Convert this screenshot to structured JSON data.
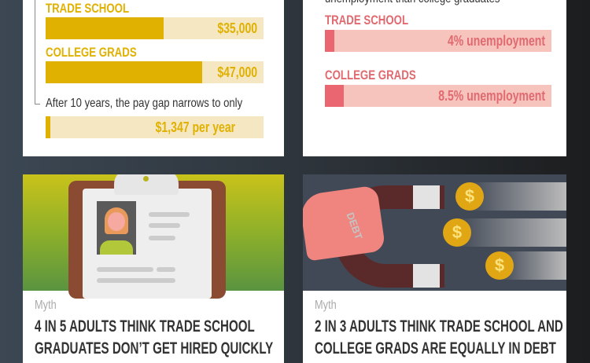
{
  "salary": {
    "trade_label": "TRADE SCHOOL",
    "trade_value": "$35,000",
    "trade_fill": 0.54,
    "college_label": "COLLEGE GRADS",
    "college_value": "$47,000",
    "college_fill": 0.72,
    "note": "After 10 years, the pay gap narrows to only",
    "gap_value": "$1,347 per year",
    "gap_fill": 0.02,
    "colors": {
      "fill": "#e0b100",
      "track": "#f5e7c2"
    }
  },
  "unemployment": {
    "intro": "unemployment than college graduates",
    "trade_label": "TRADE SCHOOL",
    "trade_value": "4% unemployment",
    "trade_fill": 0.04,
    "college_label": "COLLEGE GRADS",
    "college_value": "8.5% unemployment",
    "college_fill": 0.085,
    "colors": {
      "fill": "#ea6670",
      "track": "#f7c3bd"
    }
  },
  "myth1": {
    "tag": "Myth",
    "line1": "4 IN 5 ADULTS THINK TRADE SCHOOL",
    "line2": "GRADUATES DON’T GET HIRED QUICKLY"
  },
  "myth2": {
    "tag": "Myth",
    "line1": "2 IN 3 ADULTS THINK TRADE SCHOOL AND",
    "line2": "COLLEGE GRADS ARE EQUALLY IN DEBT",
    "magnet_text": "DEBT",
    "coin_symbol": "$"
  }
}
